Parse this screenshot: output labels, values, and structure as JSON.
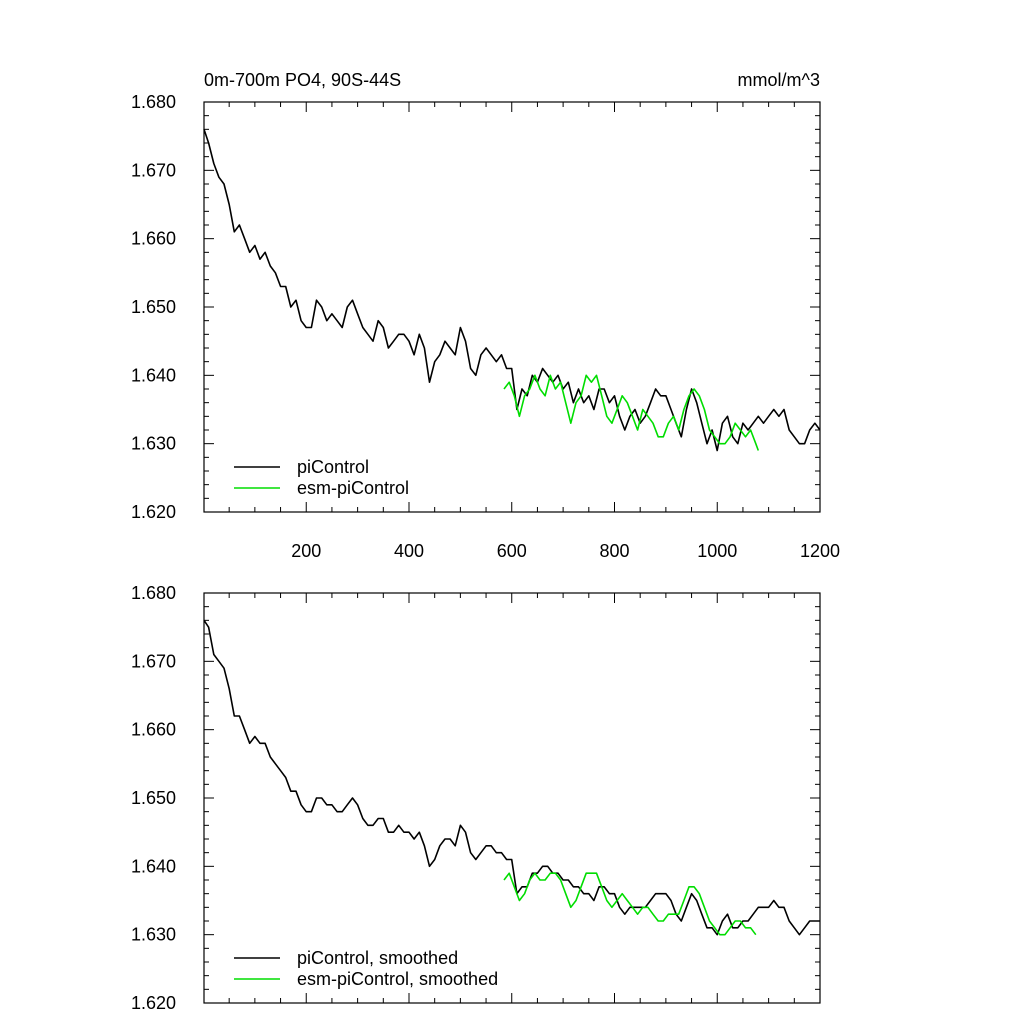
{
  "figure": {
    "title_left": "0m-700m PO4, 90S-44S",
    "title_right": "mmol/m^3"
  },
  "chart_data": [
    {
      "type": "line",
      "ylim": [
        1.62,
        1.68
      ],
      "xlim": [
        1,
        1200
      ],
      "y_ticks": [
        "1.620",
        "1.630",
        "1.640",
        "1.650",
        "1.660",
        "1.670",
        "1.680"
      ],
      "x_ticks": [
        "200",
        "400",
        "600",
        "800",
        "1000",
        "1200"
      ],
      "legend_position": "bottom-left",
      "series": [
        {
          "name": "piControl",
          "color": "#000000",
          "x": [
            1,
            10,
            20,
            30,
            40,
            50,
            60,
            70,
            80,
            90,
            100,
            110,
            120,
            130,
            140,
            150,
            160,
            170,
            180,
            190,
            200,
            210,
            220,
            230,
            240,
            250,
            260,
            270,
            280,
            290,
            300,
            310,
            320,
            330,
            340,
            350,
            360,
            370,
            380,
            390,
            400,
            410,
            420,
            430,
            440,
            450,
            460,
            470,
            480,
            490,
            500,
            510,
            520,
            530,
            540,
            550,
            560,
            570,
            580,
            590,
            600,
            610,
            620,
            630,
            640,
            650,
            660,
            670,
            680,
            690,
            700,
            710,
            720,
            730,
            740,
            750,
            760,
            770,
            780,
            790,
            800,
            810,
            820,
            830,
            840,
            850,
            860,
            870,
            880,
            890,
            900,
            910,
            920,
            930,
            940,
            950,
            960,
            970,
            980,
            990,
            1000,
            1010,
            1020,
            1030,
            1040,
            1050,
            1060,
            1070,
            1080,
            1090,
            1100,
            1110,
            1120,
            1130,
            1140,
            1150,
            1160,
            1170,
            1180,
            1190,
            1200
          ],
          "values": [
            1.676,
            1.674,
            1.671,
            1.669,
            1.668,
            1.665,
            1.661,
            1.662,
            1.66,
            1.658,
            1.659,
            1.657,
            1.658,
            1.656,
            1.655,
            1.653,
            1.653,
            1.65,
            1.651,
            1.648,
            1.647,
            1.647,
            1.651,
            1.65,
            1.648,
            1.649,
            1.648,
            1.647,
            1.65,
            1.651,
            1.649,
            1.647,
            1.646,
            1.645,
            1.648,
            1.647,
            1.644,
            1.645,
            1.646,
            1.646,
            1.645,
            1.643,
            1.646,
            1.644,
            1.639,
            1.642,
            1.643,
            1.645,
            1.644,
            1.643,
            1.647,
            1.645,
            1.641,
            1.64,
            1.643,
            1.644,
            1.643,
            1.642,
            1.643,
            1.641,
            1.641,
            1.635,
            1.638,
            1.637,
            1.64,
            1.639,
            1.641,
            1.64,
            1.639,
            1.64,
            1.638,
            1.639,
            1.636,
            1.638,
            1.636,
            1.637,
            1.635,
            1.638,
            1.638,
            1.636,
            1.637,
            1.634,
            1.632,
            1.634,
            1.635,
            1.633,
            1.634,
            1.636,
            1.638,
            1.637,
            1.637,
            1.635,
            1.633,
            1.631,
            1.635,
            1.638,
            1.636,
            1.633,
            1.63,
            1.632,
            1.629,
            1.633,
            1.634,
            1.631,
            1.63,
            1.633,
            1.632,
            1.633,
            1.634,
            1.633,
            1.634,
            1.635,
            1.634,
            1.635,
            1.632,
            1.631,
            1.63,
            1.63,
            1.632,
            1.633,
            1.632
          ]
        },
        {
          "name": "esm-piControl",
          "color": "#00dd00",
          "x": [
            585,
            595,
            605,
            615,
            625,
            635,
            645,
            655,
            665,
            675,
            685,
            695,
            705,
            715,
            725,
            735,
            745,
            755,
            765,
            775,
            785,
            795,
            805,
            815,
            825,
            835,
            845,
            855,
            865,
            875,
            885,
            895,
            905,
            915,
            925,
            935,
            945,
            955,
            965,
            975,
            985,
            995,
            1005,
            1015,
            1025,
            1035,
            1045,
            1055,
            1065,
            1075,
            1080
          ],
          "values": [
            1.638,
            1.639,
            1.637,
            1.634,
            1.637,
            1.638,
            1.64,
            1.638,
            1.637,
            1.64,
            1.638,
            1.639,
            1.636,
            1.633,
            1.636,
            1.637,
            1.64,
            1.639,
            1.64,
            1.637,
            1.634,
            1.633,
            1.635,
            1.637,
            1.636,
            1.634,
            1.632,
            1.635,
            1.634,
            1.633,
            1.631,
            1.631,
            1.633,
            1.634,
            1.632,
            1.635,
            1.637,
            1.638,
            1.637,
            1.635,
            1.632,
            1.631,
            1.63,
            1.63,
            1.631,
            1.633,
            1.632,
            1.631,
            1.632,
            1.63,
            1.629
          ]
        }
      ]
    },
    {
      "type": "line",
      "ylim": [
        1.62,
        1.68
      ],
      "xlim": [
        1,
        1200
      ],
      "y_ticks": [
        "1.620",
        "1.630",
        "1.640",
        "1.650",
        "1.660",
        "1.670",
        "1.680"
      ],
      "x_ticks": [],
      "legend_position": "bottom-left",
      "series": [
        {
          "name": "piControl, smoothed",
          "color": "#000000",
          "x": [
            1,
            10,
            20,
            30,
            40,
            50,
            60,
            70,
            80,
            90,
            100,
            110,
            120,
            130,
            140,
            150,
            160,
            170,
            180,
            190,
            200,
            210,
            220,
            230,
            240,
            250,
            260,
            270,
            280,
            290,
            300,
            310,
            320,
            330,
            340,
            350,
            360,
            370,
            380,
            390,
            400,
            410,
            420,
            430,
            440,
            450,
            460,
            470,
            480,
            490,
            500,
            510,
            520,
            530,
            540,
            550,
            560,
            570,
            580,
            590,
            600,
            610,
            620,
            630,
            640,
            650,
            660,
            670,
            680,
            690,
            700,
            710,
            720,
            730,
            740,
            750,
            760,
            770,
            780,
            790,
            800,
            810,
            820,
            830,
            840,
            850,
            860,
            870,
            880,
            890,
            900,
            910,
            920,
            930,
            940,
            950,
            960,
            970,
            980,
            990,
            1000,
            1010,
            1020,
            1030,
            1040,
            1050,
            1060,
            1070,
            1080,
            1090,
            1100,
            1110,
            1120,
            1130,
            1140,
            1150,
            1160,
            1170,
            1180,
            1190,
            1200
          ],
          "values": [
            1.676,
            1.675,
            1.671,
            1.67,
            1.669,
            1.666,
            1.662,
            1.662,
            1.66,
            1.658,
            1.659,
            1.658,
            1.658,
            1.656,
            1.655,
            1.654,
            1.653,
            1.651,
            1.651,
            1.649,
            1.648,
            1.648,
            1.65,
            1.65,
            1.649,
            1.649,
            1.648,
            1.648,
            1.649,
            1.65,
            1.649,
            1.647,
            1.646,
            1.646,
            1.647,
            1.647,
            1.645,
            1.645,
            1.646,
            1.645,
            1.645,
            1.644,
            1.645,
            1.643,
            1.64,
            1.641,
            1.643,
            1.644,
            1.644,
            1.643,
            1.646,
            1.645,
            1.642,
            1.641,
            1.642,
            1.643,
            1.643,
            1.642,
            1.642,
            1.641,
            1.641,
            1.636,
            1.637,
            1.637,
            1.639,
            1.639,
            1.64,
            1.64,
            1.639,
            1.639,
            1.638,
            1.638,
            1.637,
            1.637,
            1.636,
            1.636,
            1.635,
            1.637,
            1.637,
            1.636,
            1.636,
            1.634,
            1.633,
            1.634,
            1.634,
            1.634,
            1.634,
            1.635,
            1.636,
            1.636,
            1.636,
            1.635,
            1.633,
            1.632,
            1.634,
            1.636,
            1.635,
            1.633,
            1.631,
            1.631,
            1.63,
            1.632,
            1.633,
            1.631,
            1.631,
            1.632,
            1.632,
            1.633,
            1.634,
            1.634,
            1.634,
            1.635,
            1.634,
            1.634,
            1.632,
            1.631,
            1.63,
            1.631,
            1.632,
            1.632,
            1.632
          ]
        },
        {
          "name": "esm-piControl, smoothed",
          "color": "#00dd00",
          "x": [
            585,
            595,
            605,
            615,
            625,
            635,
            645,
            655,
            665,
            675,
            685,
            695,
            705,
            715,
            725,
            735,
            745,
            755,
            765,
            775,
            785,
            795,
            805,
            815,
            825,
            835,
            845,
            855,
            865,
            875,
            885,
            895,
            905,
            915,
            925,
            935,
            945,
            955,
            965,
            975,
            985,
            995,
            1005,
            1015,
            1025,
            1035,
            1045,
            1055,
            1065,
            1075
          ],
          "values": [
            1.638,
            1.639,
            1.637,
            1.635,
            1.636,
            1.638,
            1.639,
            1.638,
            1.638,
            1.639,
            1.639,
            1.638,
            1.636,
            1.634,
            1.635,
            1.637,
            1.639,
            1.639,
            1.639,
            1.637,
            1.635,
            1.634,
            1.635,
            1.636,
            1.635,
            1.634,
            1.633,
            1.634,
            1.634,
            1.633,
            1.632,
            1.632,
            1.633,
            1.633,
            1.633,
            1.635,
            1.637,
            1.637,
            1.636,
            1.634,
            1.632,
            1.631,
            1.63,
            1.63,
            1.631,
            1.632,
            1.632,
            1.631,
            1.631,
            1.63
          ]
        }
      ]
    }
  ]
}
